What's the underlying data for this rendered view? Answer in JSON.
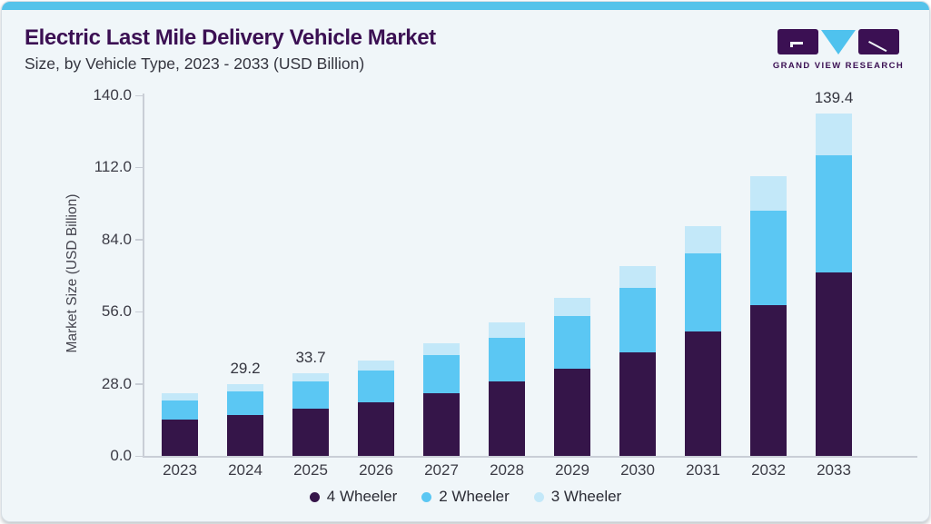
{
  "header": {
    "title": "Electric Last Mile Delivery Vehicle Market",
    "subtitle": "Size, by Vehicle Type, 2023 - 2033 (USD Billion)"
  },
  "logo": {
    "text": "GRAND VIEW RESEARCH"
  },
  "colors": {
    "accent_bar": "#55c3ea",
    "card_background": "#f0f6f9",
    "title_purple": "#3b1053",
    "logo_purple": "#3b1053",
    "logo_blue": "#4fc2ee",
    "axis_line": "#c9ced6",
    "axis_text": "#3c3c46"
  },
  "chart_data": {
    "type": "bar",
    "stacked": true,
    "ylabel": "Market Size (USD Billion)",
    "categories": [
      "2023",
      "2024",
      "2025",
      "2026",
      "2027",
      "2028",
      "2029",
      "2030",
      "2031",
      "2032",
      "2033"
    ],
    "series": [
      {
        "name": "4 Wheeler",
        "color": "#351549",
        "values": [
          14.8,
          16.6,
          19.2,
          21.9,
          25.4,
          30.2,
          35.4,
          42.3,
          50.5,
          61.4,
          74.7
        ]
      },
      {
        "name": "2 Wheeler",
        "color": "#5bc7f3",
        "values": [
          7.8,
          9.6,
          11.1,
          12.9,
          15.6,
          17.9,
          21.6,
          26.0,
          31.8,
          38.4,
          47.7
        ]
      },
      {
        "name": "3 Wheeler",
        "color": "#c3e8f9",
        "values": [
          3.0,
          3.0,
          3.4,
          4.0,
          4.9,
          6.2,
          7.3,
          9.1,
          11.3,
          13.9,
          17.0
        ]
      }
    ],
    "totals": [
      25.6,
      29.2,
      33.7,
      38.8,
      45.9,
      54.3,
      64.3,
      77.4,
      93.6,
      113.7,
      139.4
    ],
    "bar_annotations": [
      "",
      "29.2",
      "33.7",
      "",
      "",
      "",
      "",
      "",
      "",
      "",
      "139.4"
    ],
    "ytick_labels": [
      "0.0",
      "28.0",
      "56.0",
      "84.0",
      "112.0",
      "140.0"
    ],
    "ylim": [
      0,
      140
    ],
    "grid": false,
    "legend_position": "bottom"
  }
}
